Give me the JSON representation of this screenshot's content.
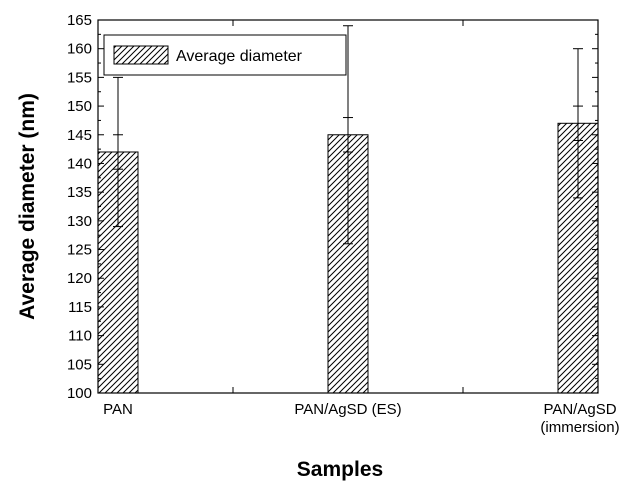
{
  "chart_data": {
    "type": "bar",
    "title": "",
    "xlabel": "Samples",
    "ylabel": "Average diameter (nm)",
    "ylim": [
      100,
      165
    ],
    "yticks": [
      100,
      105,
      110,
      115,
      120,
      125,
      130,
      135,
      140,
      145,
      150,
      155,
      160,
      165
    ],
    "categories": [
      [
        "PAN"
      ],
      [
        "PAN/AgSD (ES)"
      ],
      [
        "PAN/AgSD",
        "(immersion)"
      ]
    ],
    "series": [
      {
        "name": "Average diameter",
        "values": [
          142,
          145,
          147
        ],
        "error_outer": [
          [
            129,
            155
          ],
          [
            126,
            164
          ],
          [
            134,
            160
          ]
        ],
        "error_inner": [
          [
            139,
            145
          ],
          [
            142,
            148
          ],
          [
            144,
            150
          ]
        ],
        "pattern": "diagonal-hatch"
      }
    ],
    "legend": {
      "position": "top-left"
    },
    "grid": false
  }
}
